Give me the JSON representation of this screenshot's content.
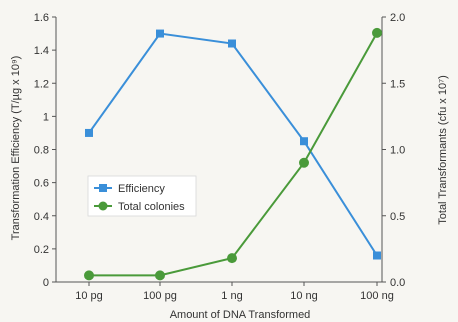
{
  "chart_data": {
    "type": "line",
    "categories": [
      "10 pg",
      "100 pg",
      "1 ng",
      "10 ng",
      "100 ng"
    ],
    "xlabel": "Amount of DNA Transformed",
    "ylabel_left": "Transformation Efficiency (T/µg x 10⁹)",
    "ylabel_right": "Total Transformants (cfu x 10⁷)",
    "ylim_left": [
      0,
      1.6
    ],
    "ylim_right": [
      0,
      2.0
    ],
    "yticks_left": [
      "0",
      "0.2",
      "0.4",
      "0.6",
      "0.8",
      "1",
      "1.2",
      "1.4",
      "1.6"
    ],
    "yticks_right": [
      "0.0",
      "0.5",
      "1.0",
      "1.5",
      "2.0"
    ],
    "grid": false,
    "legend_position": "center-left",
    "series": [
      {
        "name": "Efficiency",
        "axis": "left",
        "marker": "square",
        "color": "#3a8fd9",
        "values": [
          0.9,
          1.5,
          1.44,
          0.85,
          0.16
        ]
      },
      {
        "name": "Total colonies",
        "axis": "right",
        "marker": "circle",
        "color": "#4a9a3a",
        "values": [
          0.05,
          0.05,
          0.18,
          0.9,
          1.88
        ]
      }
    ]
  }
}
